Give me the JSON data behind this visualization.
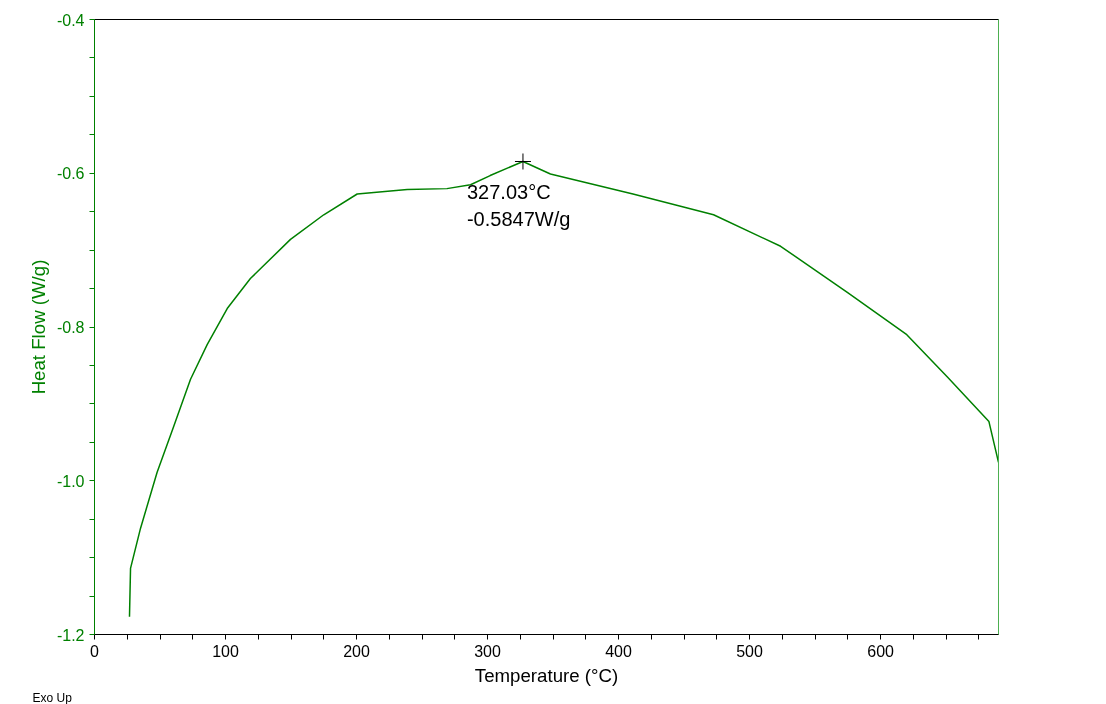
{
  "chart_data": {
    "type": "line",
    "xlabel": "Temperature (°C)",
    "ylabel": "Heat Flow (W/g)",
    "series": [
      {
        "color": "#008000",
        "x": [
          26.7,
          27.5,
          35.1,
          47.8,
          60.5,
          73.3,
          86,
          101.3,
          119,
          149.6,
          175,
          200.5,
          238.7,
          269,
          287,
          302,
          327.03,
          348,
          411,
          472.5,
          523.7,
          574.6,
          620,
          651,
          682.7,
          690
        ],
        "values": [
          -1.177,
          -1.114,
          -1.062,
          -0.989,
          -0.929,
          -0.868,
          -0.823,
          -0.776,
          -0.737,
          -0.686,
          -0.654,
          -0.627,
          -0.621,
          -0.62,
          -0.615,
          -0.603,
          -0.5847,
          -0.601,
          -0.627,
          -0.654,
          -0.695,
          -0.755,
          -0.81,
          -0.865,
          -0.923,
          -0.976
        ]
      }
    ],
    "xlim": [
      0,
      690
    ],
    "ylim": [
      -1.2,
      -0.4
    ],
    "xticks": [
      0,
      {
        "value": 25,
        "label": null
      },
      {
        "value": 50,
        "label": null
      },
      {
        "value": 75,
        "label": null
      },
      100,
      {
        "value": 125,
        "label": null
      },
      {
        "value": 150,
        "label": null
      },
      {
        "value": 175,
        "label": null
      },
      200,
      {
        "value": 225,
        "label": null
      },
      {
        "value": 250,
        "label": null
      },
      {
        "value": 275,
        "label": null
      },
      300,
      {
        "value": 325,
        "label": null
      },
      {
        "value": 350,
        "label": null
      },
      {
        "value": 375,
        "label": null
      },
      400,
      {
        "value": 425,
        "label": null
      },
      {
        "value": 450,
        "label": null
      },
      {
        "value": 475,
        "label": null
      },
      500,
      {
        "value": 525,
        "label": null
      },
      {
        "value": 550,
        "label": null
      },
      {
        "value": 575,
        "label": null
      },
      600,
      {
        "value": 625,
        "label": null
      },
      {
        "value": 650,
        "label": null
      },
      {
        "value": 675,
        "label": null
      }
    ],
    "yticks": [
      {
        "value": -1.2,
        "label": "-1.2"
      },
      {
        "value": -1.15,
        "label": null
      },
      {
        "value": -1.1,
        "label": null
      },
      {
        "value": -1.05,
        "label": null
      },
      {
        "value": -1.0,
        "label": "-1.0"
      },
      {
        "value": -0.95,
        "label": null
      },
      {
        "value": -0.9,
        "label": null
      },
      {
        "value": -0.85,
        "label": null
      },
      {
        "value": -0.8,
        "label": "-0.8"
      },
      {
        "value": -0.75,
        "label": null
      },
      {
        "value": -0.7,
        "label": null
      },
      {
        "value": -0.65,
        "label": null
      },
      {
        "value": -0.6,
        "label": "-0.6"
      },
      {
        "value": -0.55,
        "label": null
      },
      {
        "value": -0.5,
        "label": null
      },
      {
        "value": -0.45,
        "label": null
      },
      {
        "value": -0.4,
        "label": "-0.4"
      }
    ],
    "annotations": [
      {
        "text": "327.03°C\n-0.5847W/g",
        "x": 327.03,
        "y": -0.5847
      },
      "Exo Up"
    ],
    "grid": false,
    "marker": "none",
    "line_style": "solid"
  }
}
